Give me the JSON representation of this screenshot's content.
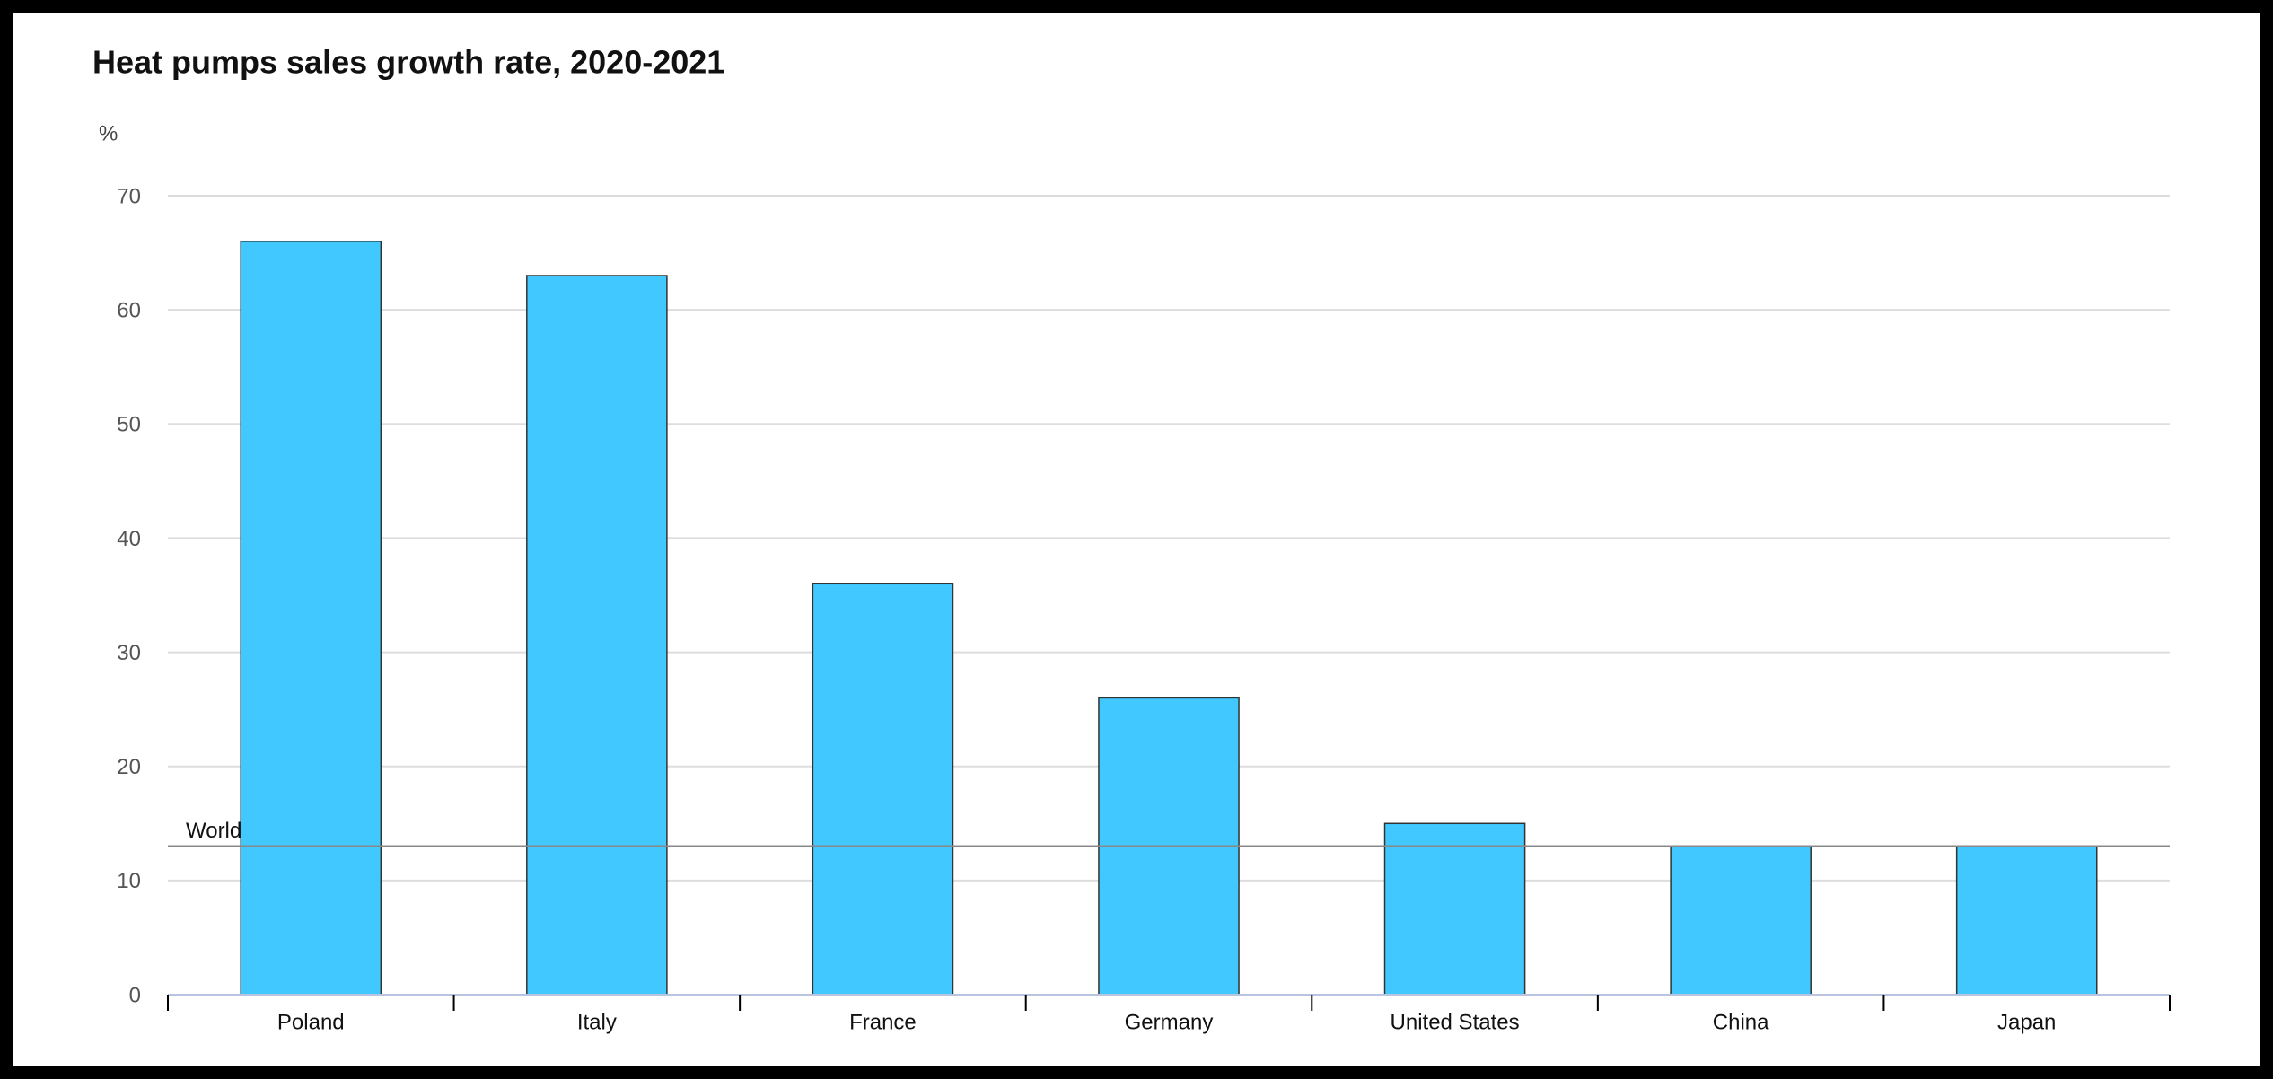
{
  "chart_data": {
    "type": "bar",
    "title": "Heat pumps sales growth rate, 2020-2021",
    "y_label": "%",
    "categories": [
      "Poland",
      "Italy",
      "France",
      "Germany",
      "United States",
      "China",
      "Japan"
    ],
    "values": [
      66,
      63,
      36,
      26,
      15,
      13,
      13
    ],
    "color": "#40c8ff",
    "ylim": [
      0,
      70
    ],
    "yticks": [
      0,
      10,
      20,
      30,
      40,
      50,
      60,
      70
    ],
    "grid": true,
    "reference_line": {
      "label": "World",
      "value": 13,
      "color": "#888888"
    }
  }
}
